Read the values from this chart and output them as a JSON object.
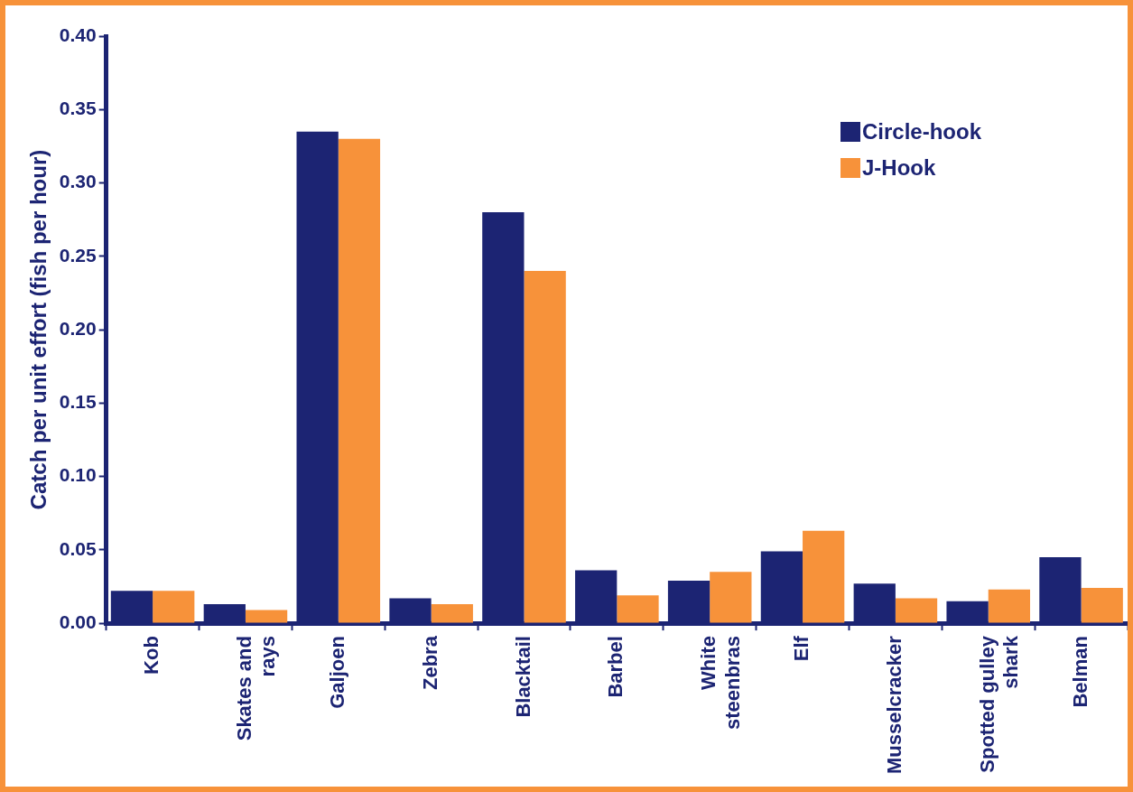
{
  "chart_data": {
    "type": "bar",
    "ylabel": "Catch per unit effort (fish per hour)",
    "categories": [
      "Kob",
      "Skates and rays",
      "Galjoen",
      "Zebra",
      "Blacktail",
      "Barbel",
      "White steenbras",
      "Elf",
      "Musselcracker",
      "Spotted gulley shark",
      "Belman"
    ],
    "series": [
      {
        "name": "Circle-hook",
        "color": "#1c2473",
        "values": [
          0.022,
          0.013,
          0.335,
          0.017,
          0.28,
          0.036,
          0.029,
          0.049,
          0.027,
          0.015,
          0.045
        ]
      },
      {
        "name": "J-Hook",
        "color": "#f7923a",
        "values": [
          0.022,
          0.009,
          0.33,
          0.013,
          0.24,
          0.019,
          0.035,
          0.063,
          0.017,
          0.023,
          0.024
        ]
      }
    ],
    "ylim": [
      0,
      0.4
    ],
    "yticks": [
      {
        "value": 0,
        "label": "0.00"
      },
      {
        "value": 0.05,
        "label": "0.05"
      },
      {
        "value": 0.1,
        "label": "0.10"
      },
      {
        "value": 0.15,
        "label": "0.15"
      },
      {
        "value": 0.2,
        "label": "0.20"
      },
      {
        "value": 0.25,
        "label": "0.25"
      },
      {
        "value": 0.3,
        "label": "0.30"
      },
      {
        "value": 0.35,
        "label": "0.35"
      },
      {
        "value": 0.4,
        "label": "0.40"
      }
    ],
    "grid": false,
    "legend": "top right"
  }
}
